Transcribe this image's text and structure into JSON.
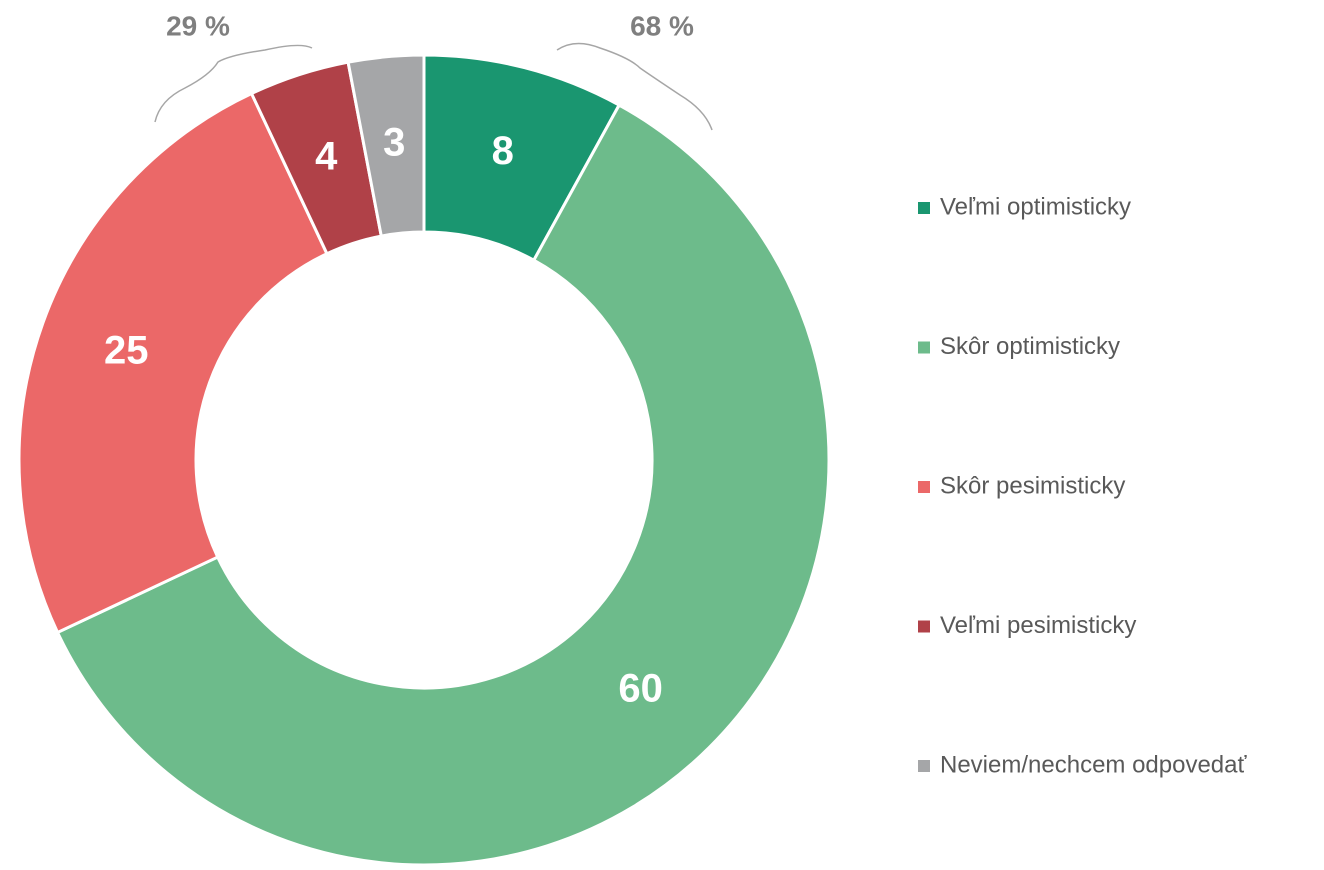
{
  "chart_data": {
    "type": "donut",
    "categories": [
      "Veľmi optimisticky",
      "Skôr optimisticky",
      "Skôr pesimisticky",
      "Veľmi pesimisticky",
      "Neviem/nechcem odpovedať"
    ],
    "values": [
      8,
      60,
      25,
      4,
      3
    ],
    "colors": [
      "#1a9670",
      "#6dbb8b",
      "#eb6868",
      "#b04148",
      "#a5a6a8"
    ],
    "annotations": [
      "29 %",
      "68 %"
    ]
  }
}
